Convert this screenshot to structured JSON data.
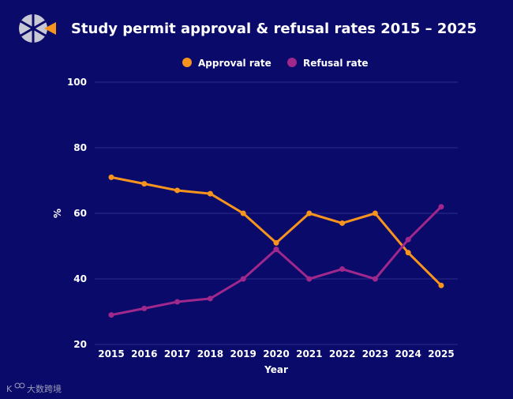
{
  "chart_data": {
    "type": "line",
    "title": "Study permit approval & refusal rates 2015 – 2025",
    "xlabel": "Year",
    "ylabel": "%",
    "categories": [
      "2015",
      "2016",
      "2017",
      "2018",
      "2019",
      "2020",
      "2021",
      "2022",
      "2023",
      "2024",
      "2025"
    ],
    "ylim": [
      20,
      100
    ],
    "yticks": [
      20,
      40,
      60,
      80,
      100
    ],
    "grid": true,
    "legend_position": "top-center",
    "series": [
      {
        "name": "Approval rate",
        "color": "#f7941d",
        "values": [
          71,
          69,
          67,
          66,
          60,
          51,
          60,
          57,
          60,
          48,
          38
        ]
      },
      {
        "name": "Refusal rate",
        "color": "#a0288c",
        "values": [
          29,
          31,
          33,
          34,
          40,
          49,
          40,
          43,
          40,
          52,
          62
        ]
      }
    ]
  },
  "colors": {
    "background": "#0a0a6b",
    "grid": "#2c2c8a",
    "logo_gray": "#c8c8d4",
    "logo_accent": "#f7941d"
  },
  "icons": {
    "logo": "aperture-logo-icon",
    "watermark": "brand-watermark-icon"
  },
  "watermark": {
    "text": "大数跨境"
  }
}
